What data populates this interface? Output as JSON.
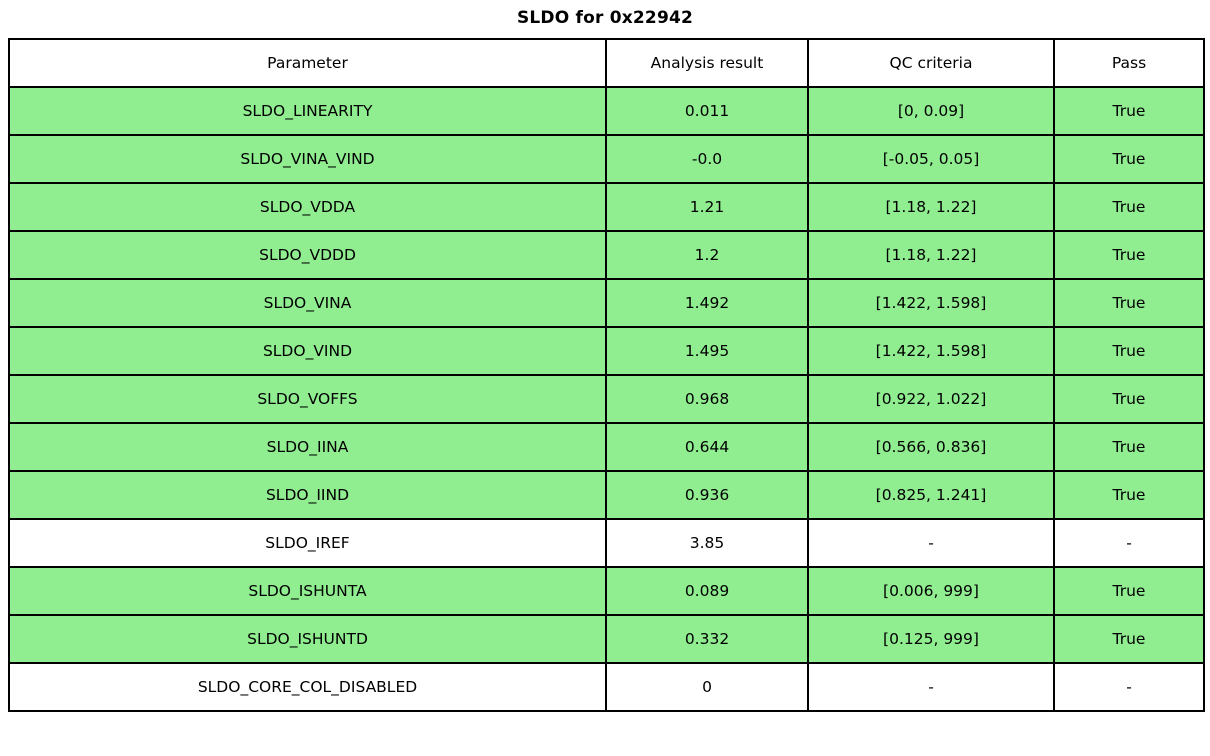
{
  "title": "SLDO for 0x22942",
  "colors": {
    "pass_row_bg": "#90ee90",
    "neutral_row_bg": "#ffffff",
    "border": "#000000",
    "text": "#000000"
  },
  "chart_data": {
    "type": "table",
    "title": "SLDO for 0x22942",
    "columns": [
      "Parameter",
      "Analysis result",
      "QC criteria",
      "Pass"
    ],
    "rows": [
      [
        "SLDO_LINEARITY",
        "0.011",
        "[0, 0.09]",
        "True"
      ],
      [
        "SLDO_VINA_VIND",
        "-0.0",
        "[-0.05, 0.05]",
        "True"
      ],
      [
        "SLDO_VDDA",
        "1.21",
        "[1.18, 1.22]",
        "True"
      ],
      [
        "SLDO_VDDD",
        "1.2",
        "[1.18, 1.22]",
        "True"
      ],
      [
        "SLDO_VINA",
        "1.492",
        "[1.422, 1.598]",
        "True"
      ],
      [
        "SLDO_VIND",
        "1.495",
        "[1.422, 1.598]",
        "True"
      ],
      [
        "SLDO_VOFFS",
        "0.968",
        "[0.922, 1.022]",
        "True"
      ],
      [
        "SLDO_IINA",
        "0.644",
        "[0.566, 0.836]",
        "True"
      ],
      [
        "SLDO_IIND",
        "0.936",
        "[0.825, 1.241]",
        "True"
      ],
      [
        "SLDO_IREF",
        "3.85",
        "-",
        "-"
      ],
      [
        "SLDO_ISHUNTA",
        "0.089",
        "[0.006, 999]",
        "True"
      ],
      [
        "SLDO_ISHUNTD",
        "0.332",
        "[0.125, 999]",
        "True"
      ],
      [
        "SLDO_CORE_COL_DISABLED",
        "0",
        "-",
        "-"
      ]
    ],
    "row_highlight": [
      true,
      true,
      true,
      true,
      true,
      true,
      true,
      true,
      true,
      false,
      true,
      true,
      false
    ],
    "layout": "header row white, passing rows light green, rows without QC criteria white"
  }
}
